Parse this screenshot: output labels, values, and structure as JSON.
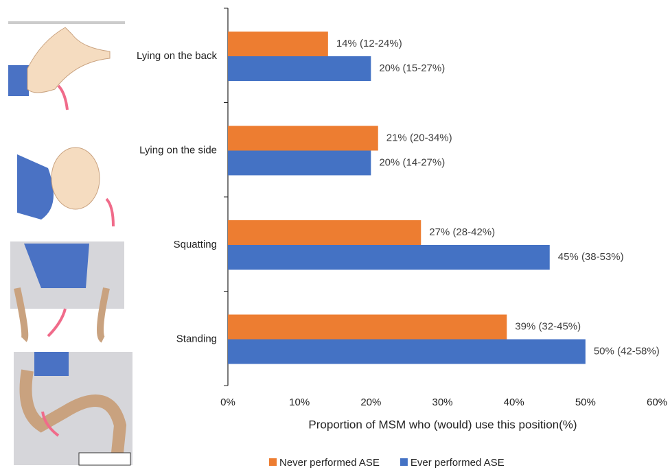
{
  "chart_data": {
    "type": "hbar",
    "categories": [
      "Lying on the back",
      "Lying on the side",
      "Squatting",
      "Standing"
    ],
    "series": [
      {
        "name": "Never performed ASE",
        "color": "#ED7D31",
        "values": [
          14,
          21,
          27,
          39
        ],
        "value_labels": [
          "14% (12-24%)",
          "21% (20-34%)",
          "27% (28-42%)",
          "39% (32-45%)"
        ]
      },
      {
        "name": "Ever performed ASE",
        "color": "#4472C4",
        "values": [
          20,
          20,
          45,
          50
        ],
        "value_labels": [
          "20% (15-27%)",
          "20% (14-27%)",
          "45% (38-53%)",
          "50% (42-58%)"
        ]
      }
    ],
    "xlabel": "Proportion of MSM who (would) use this position(%)",
    "xlim": [
      0,
      60
    ],
    "xticks": [
      {
        "value": 0,
        "label": "0%"
      },
      {
        "value": 10,
        "label": "10%"
      },
      {
        "value": 20,
        "label": "20%"
      },
      {
        "value": 30,
        "label": "30%"
      },
      {
        "value": 40,
        "label": "40%"
      },
      {
        "value": 50,
        "label": "50%"
      },
      {
        "value": 60,
        "label": "60%"
      }
    ],
    "legend": "bottom"
  }
}
